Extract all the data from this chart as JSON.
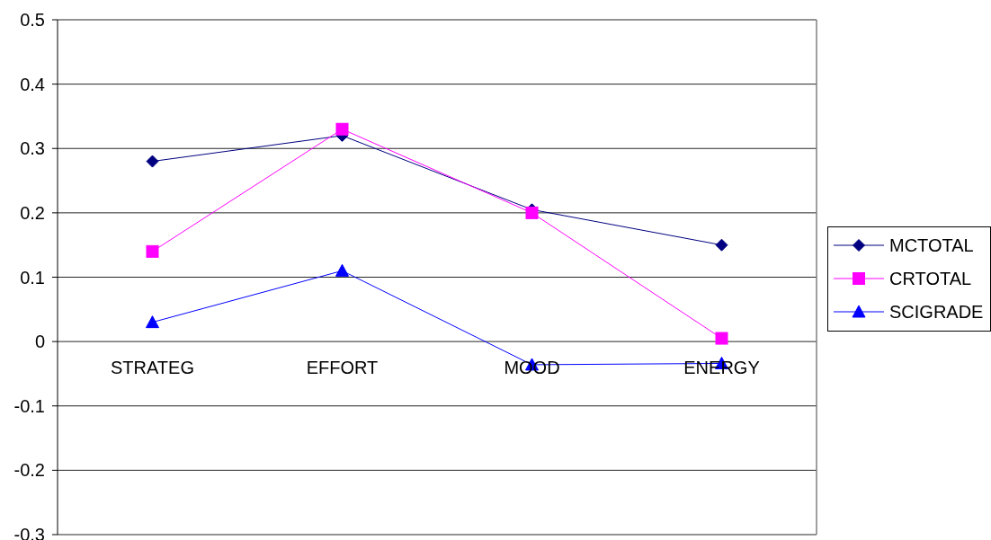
{
  "chart_data": {
    "type": "line",
    "categories": [
      "STRATEG",
      "EFFORT",
      "MOOD",
      "ENERGY"
    ],
    "series": [
      {
        "name": "MCTOTAL",
        "color": "#000080",
        "marker": "diamond",
        "values": [
          0.28,
          0.32,
          0.205,
          0.15
        ]
      },
      {
        "name": "CRTOTAL",
        "color": "#ff00ff",
        "marker": "square",
        "values": [
          0.14,
          0.33,
          0.2,
          0.005
        ]
      },
      {
        "name": "SCIGRADE",
        "color": "#0000ff",
        "marker": "triangle",
        "values": [
          0.03,
          0.11,
          -0.036,
          -0.034
        ]
      }
    ],
    "ylim": [
      -0.3,
      0.5
    ],
    "yticks": [
      -0.3,
      -0.2,
      -0.1,
      0,
      0.1,
      0.2,
      0.3,
      0.4,
      0.5
    ],
    "grid": "y",
    "legend": "right"
  }
}
